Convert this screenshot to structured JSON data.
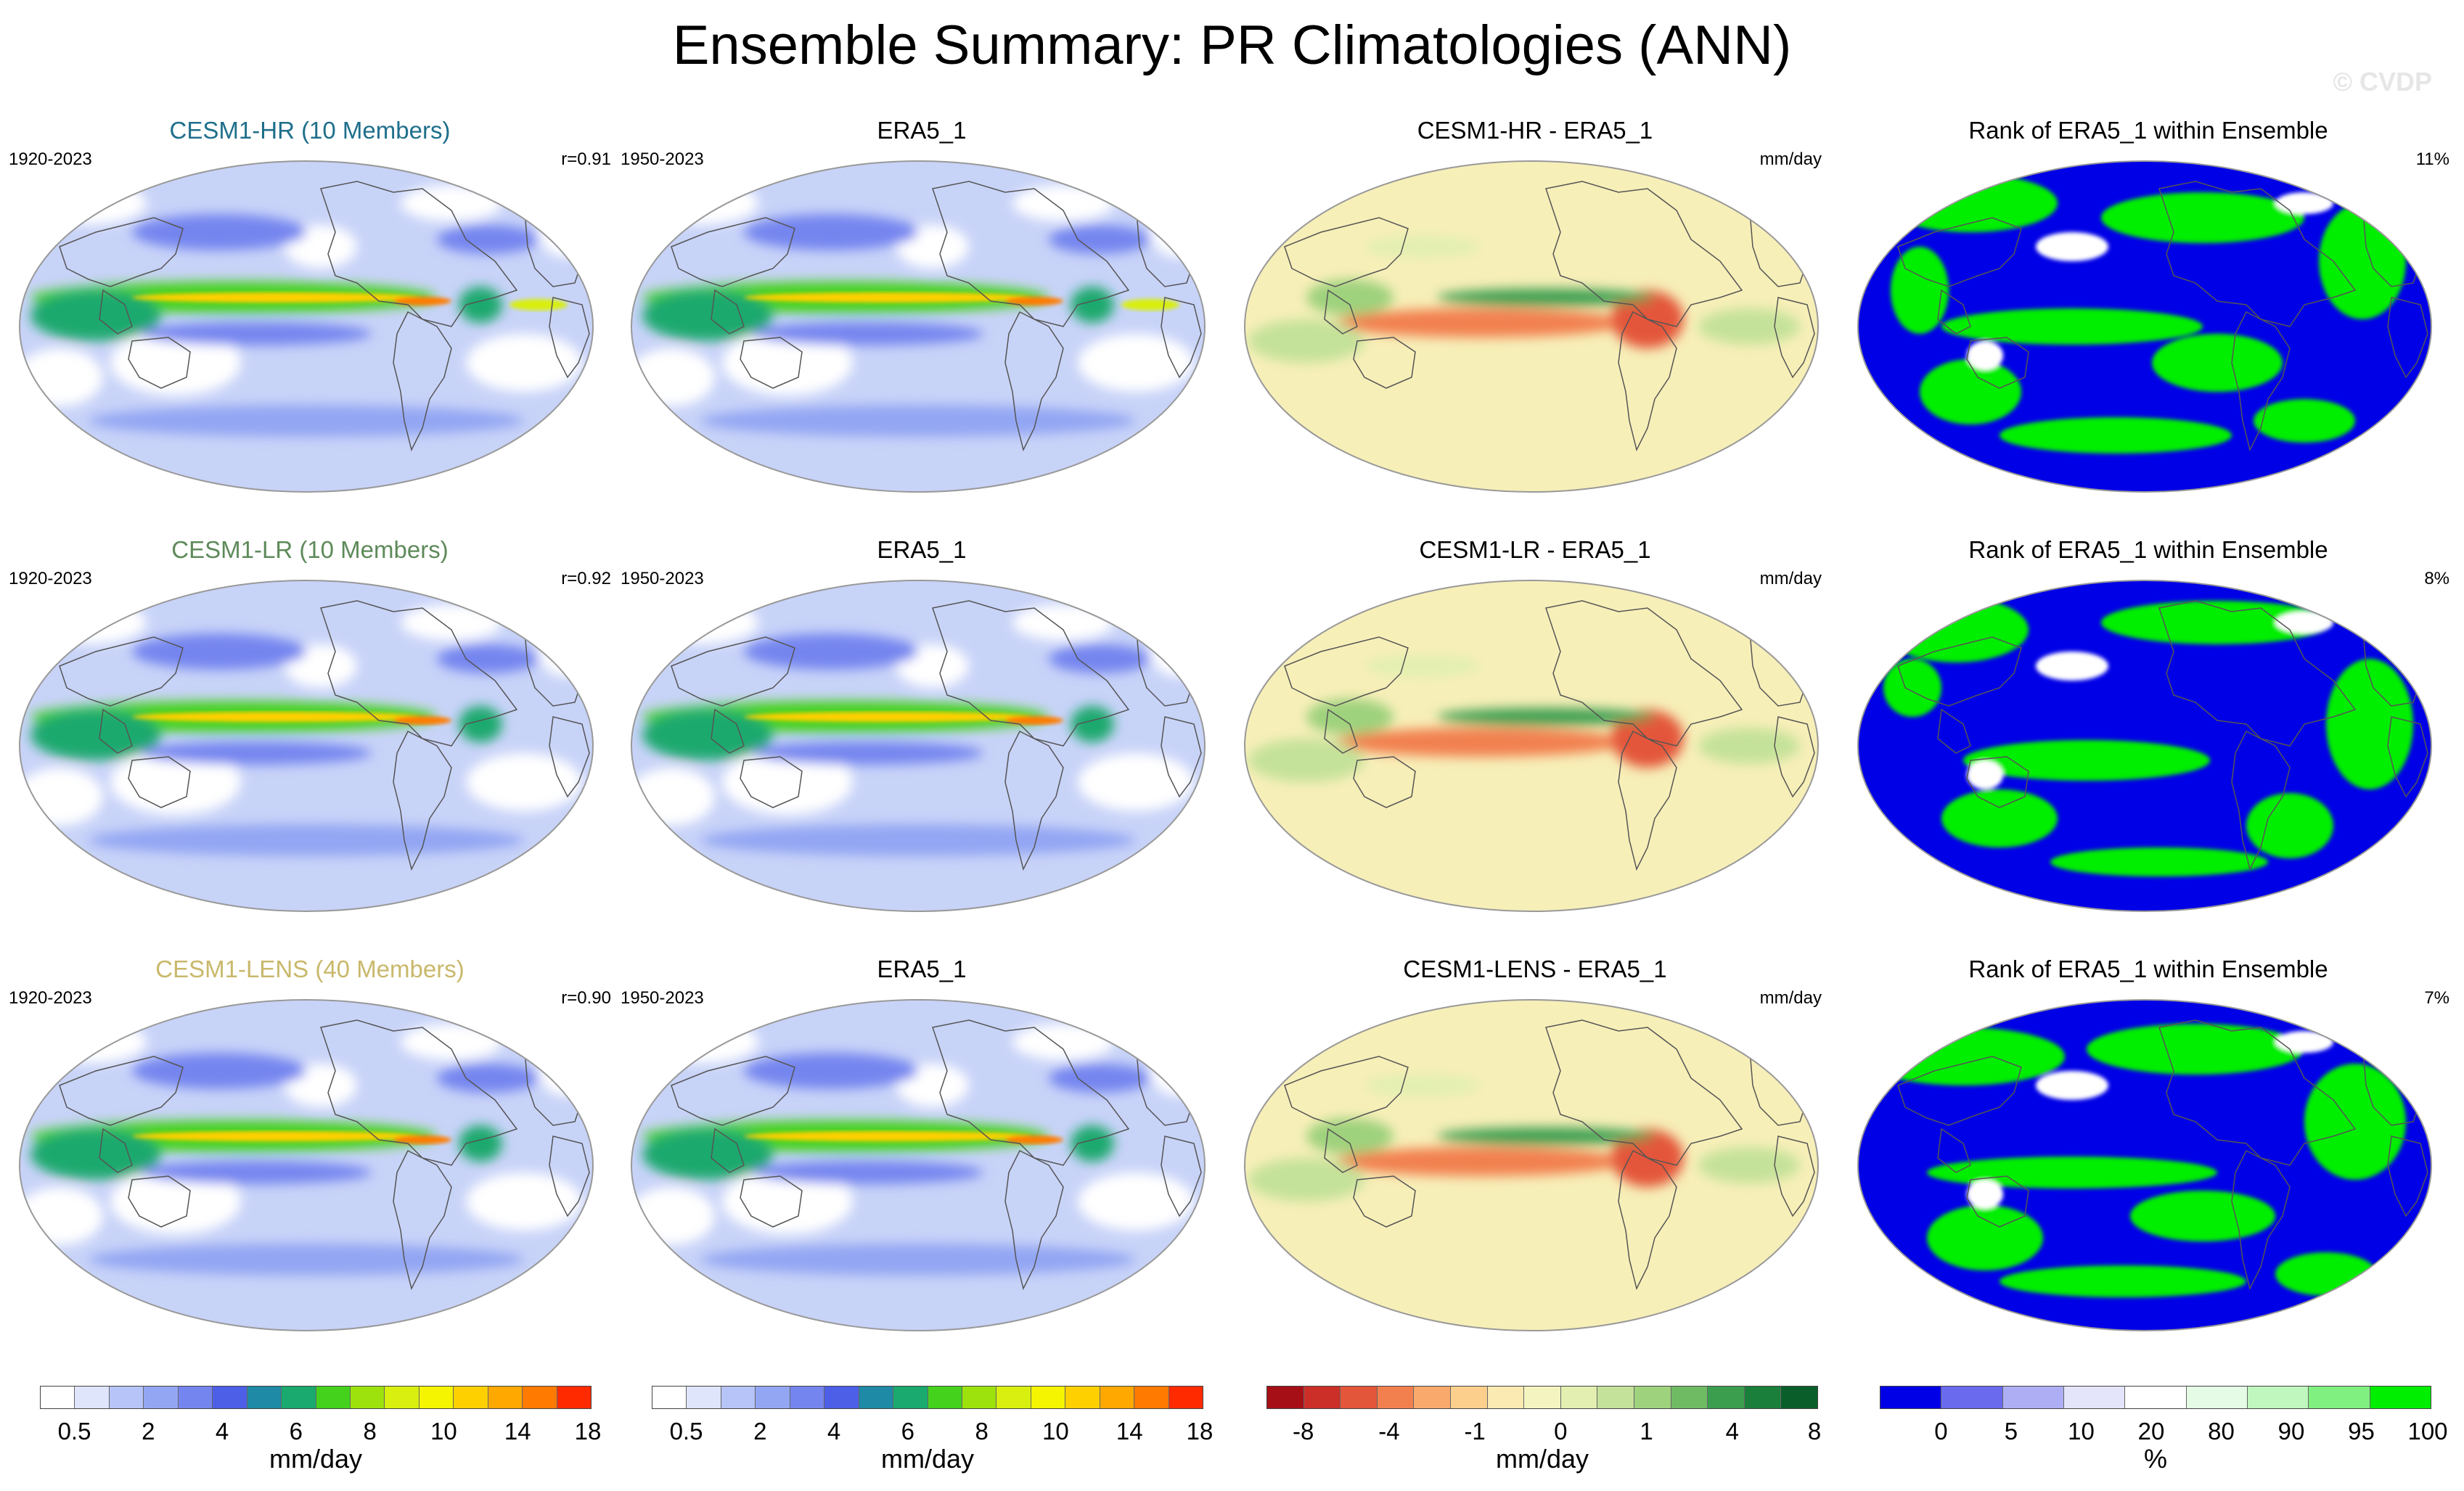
{
  "title": "Ensemble Summary: PR Climatologies (ANN)",
  "watermark": "© CVDP",
  "colors": {
    "ocean_light": "#dfe5fb",
    "land_line": "#555555",
    "rank_low": "#0000e6",
    "rank_high": "#00ee00",
    "diff_bg": "#f7efb8"
  },
  "rows": [
    {
      "model": {
        "title": "CESM1-HR (10 Members)",
        "title_color": "#1f6f8b",
        "period": "1920-2023",
        "corr": "r=0.91"
      },
      "obs": {
        "title": "ERA5_1",
        "period": "1950-2023"
      },
      "diff": {
        "title": "CESM1-HR - ERA5_1",
        "units": "mm/day"
      },
      "rank": {
        "title": "Rank of ERA5_1 within Ensemble",
        "pct": "11%"
      }
    },
    {
      "model": {
        "title": "CESM1-LR (10 Members)",
        "title_color": "#5e8a5a",
        "period": "1920-2023",
        "corr": "r=0.92"
      },
      "obs": {
        "title": "ERA5_1",
        "period": "1950-2023"
      },
      "diff": {
        "title": "CESM1-LR - ERA5_1",
        "units": "mm/day"
      },
      "rank": {
        "title": "Rank of ERA5_1 within Ensemble",
        "pct": "8%"
      }
    },
    {
      "model": {
        "title": "CESM1-LENS (40 Members)",
        "title_color": "#c9b86b",
        "period": "1920-2023",
        "corr": "r=0.90"
      },
      "obs": {
        "title": "ERA5_1",
        "period": "1950-2023"
      },
      "diff": {
        "title": "CESM1-LENS - ERA5_1",
        "units": "mm/day"
      },
      "rank": {
        "title": "Rank of ERA5_1 within Ensemble",
        "pct": "7%"
      }
    }
  ],
  "colorbars": [
    {
      "units": "mm/day",
      "colors": [
        "#ffffff",
        "#dfe5fb",
        "#b6c4f7",
        "#93a6f3",
        "#7585ef",
        "#4d5fe6",
        "#1e8aa6",
        "#1aa96e",
        "#44d21d",
        "#9ee20d",
        "#d8ef0f",
        "#f5f500",
        "#ffd000",
        "#ffa800",
        "#ff7a00",
        "#ff2a00"
      ],
      "ticks": [
        "0.5",
        "2",
        "4",
        "6",
        "8",
        "10",
        "14",
        "18"
      ]
    },
    {
      "units": "mm/day",
      "colors": [
        "#ffffff",
        "#dfe5fb",
        "#b6c4f7",
        "#93a6f3",
        "#7585ef",
        "#4d5fe6",
        "#1e8aa6",
        "#1aa96e",
        "#44d21d",
        "#9ee20d",
        "#d8ef0f",
        "#f5f500",
        "#ffd000",
        "#ffa800",
        "#ff7a00",
        "#ff2a00"
      ],
      "ticks": [
        "0.5",
        "2",
        "4",
        "6",
        "8",
        "10",
        "14",
        "18"
      ]
    },
    {
      "units": "mm/day",
      "colors": [
        "#a50f15",
        "#cb2f28",
        "#e4563a",
        "#f2804f",
        "#f9a96c",
        "#fcd08c",
        "#fbeab2",
        "#f4f4c0",
        "#e2efb0",
        "#c5e29a",
        "#9fd27d",
        "#6fbb64",
        "#3b9e4f",
        "#1a7f3a",
        "#0a5e2a"
      ],
      "ticks": [
        "-8",
        "-4",
        "-1",
        "0",
        "1",
        "4",
        "8"
      ]
    },
    {
      "units": "%",
      "colors": [
        "#0000e6",
        "#6a6aef",
        "#aeaef5",
        "#e4e4fb",
        "#ffffff",
        "#e6fbe6",
        "#bff7bf",
        "#80f080",
        "#00ee00"
      ],
      "ticks": [
        "0",
        "5",
        "10",
        "20",
        "80",
        "90",
        "95",
        "100"
      ]
    }
  ]
}
